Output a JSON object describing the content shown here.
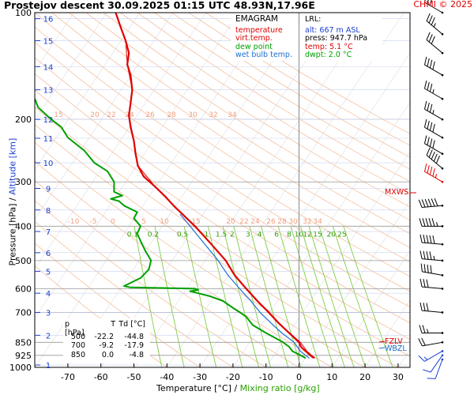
{
  "header": {
    "title": "Prostejov   descent   30.09.2025 01:15 UTC   48.93N,17.96E",
    "credit": "CHMI © 2025"
  },
  "axes": {
    "ylabel_pressure": "Pressure [hPa]",
    "ylabel_sep": " / ",
    "ylabel_altitude": "Altitude [km]",
    "xlabel_temp": "Temperature [°C]",
    "xlabel_sep": " / ",
    "xlabel_mixing": "Mixing ratio [g/kg]"
  },
  "legend": {
    "title": "EMAGRAM",
    "temperature": "temperature",
    "virt_temp": "virt.temp.",
    "dew_point": "dew point",
    "wet_bulb": "wet bulb temp."
  },
  "lrl": {
    "title": "LRL:",
    "alt": "alt: 667 m ASL",
    "press": "press: 947.7 hPa",
    "temp": "temp: 5.1 °C",
    "dwpt": "dwpt: 2.0 °C"
  },
  "table": {
    "header": [
      "p [hPa]",
      "T",
      "Td [°C]"
    ],
    "rows": [
      [
        "500",
        "-22.2",
        "-44.8"
      ],
      [
        "700",
        "-9.2",
        "-17.9"
      ],
      [
        "850",
        "0.0",
        "-4.8"
      ]
    ]
  },
  "levels": {
    "mxws": "MXWS",
    "fzlv": "FZLV",
    "wbzl": "WBZL"
  },
  "colors": {
    "temperature": "#e00000",
    "virt_temp": "#e00000",
    "dew_point": "#00a000",
    "wet_bulb": "#1a6fd0",
    "altitude_axis": "#1a3fd0",
    "dry_adiabat": "#f4c0a0",
    "moist_adiabat": "#cccccc",
    "mixing_ratio": "#80cc40",
    "isotherm_label": "#f0a080"
  },
  "chart_data": {
    "type": "line",
    "y_scale": "log",
    "pressure_ticks": [
      100,
      200,
      300,
      400,
      500,
      600,
      700,
      850,
      925,
      1000
    ],
    "pressure_tick_labels": [
      "100",
      "200",
      "300",
      "400",
      "500",
      "600",
      "700",
      "850",
      "925",
      "1000"
    ],
    "altitude_ticks_km": [
      [
        "1",
        985
      ],
      [
        "2",
        812
      ],
      [
        "3",
        700
      ],
      [
        "4",
        618
      ],
      [
        "5",
        536
      ],
      [
        "6",
        475
      ],
      [
        "7",
        414
      ],
      [
        "8",
        360
      ],
      [
        "9",
        313
      ],
      [
        "10",
        265
      ],
      [
        "11",
        226
      ],
      [
        "12",
        200
      ],
      [
        "13",
        165
      ],
      [
        "14",
        142
      ],
      [
        "15",
        120
      ],
      [
        "16",
        104
      ]
    ],
    "x_ticks": [
      -70,
      -60,
      -50,
      -40,
      -30,
      -20,
      -10,
      0,
      10,
      20,
      30
    ],
    "x_tick_labels": [
      "-70",
      "-60",
      "-50",
      "-40",
      "-30",
      "-20",
      "-10",
      "0",
      "10",
      "20",
      "30"
    ],
    "xlim": [
      -80,
      36
    ],
    "ylim": [
      1000,
      100
    ],
    "mixing_ratio_labels": [
      "0.1",
      "0.2",
      "0.5",
      "1",
      "1.5",
      "2",
      "3",
      "4",
      "6",
      "8",
      "10",
      "12",
      "15",
      "20",
      "25"
    ],
    "dry_adiabat_labels": [
      "-10",
      "-5",
      "0",
      "5",
      "10",
      "15",
      "20",
      "22",
      "24",
      "26",
      "28",
      "30",
      "32",
      "34"
    ],
    "dry_adiabat_labels_top": [
      "15",
      "20",
      "22",
      "24",
      "26",
      "28",
      "30",
      "32",
      "34"
    ],
    "series": [
      {
        "name": "temperature",
        "points": [
          [
            942,
            4.5
          ],
          [
            925,
            3.4
          ],
          [
            900,
            2.0
          ],
          [
            875,
            0.6
          ],
          [
            850,
            0.0
          ],
          [
            800,
            -3.0
          ],
          [
            750,
            -6.2
          ],
          [
            700,
            -9.2
          ],
          [
            650,
            -12.6
          ],
          [
            600,
            -16.0
          ],
          [
            550,
            -19.5
          ],
          [
            500,
            -22.2
          ],
          [
            450,
            -26.5
          ],
          [
            400,
            -31.5
          ],
          [
            350,
            -38.0
          ],
          [
            330,
            -40.5
          ],
          [
            310,
            -43.5
          ],
          [
            290,
            -47.0
          ],
          [
            270,
            -48.8
          ],
          [
            250,
            -49.5
          ],
          [
            230,
            -50.0
          ],
          [
            210,
            -51.0
          ],
          [
            195,
            -51.5
          ],
          [
            180,
            -51.0
          ],
          [
            165,
            -50.5
          ],
          [
            150,
            -51.0
          ],
          [
            140,
            -52.0
          ],
          [
            130,
            -51.5
          ],
          [
            120,
            -52.5
          ],
          [
            110,
            -54.0
          ],
          [
            100,
            -55.5
          ]
        ]
      },
      {
        "name": "virt.temp.",
        "points": [
          [
            942,
            4.9
          ],
          [
            925,
            3.8
          ],
          [
            900,
            2.4
          ],
          [
            850,
            0.4
          ],
          [
            800,
            -2.8
          ],
          [
            750,
            -6.0
          ],
          [
            700,
            -9.0
          ],
          [
            650,
            -12.5
          ],
          [
            600,
            -15.9
          ],
          [
            550,
            -19.4
          ],
          [
            500,
            -22.1
          ],
          [
            450,
            -26.4
          ],
          [
            400,
            -31.5
          ],
          [
            350,
            -38.0
          ],
          [
            310,
            -43.5
          ],
          [
            270,
            -48.8
          ],
          [
            230,
            -50.0
          ],
          [
            195,
            -51.5
          ],
          [
            165,
            -50.5
          ],
          [
            140,
            -52.0
          ],
          [
            120,
            -52.5
          ],
          [
            100,
            -55.5
          ]
        ]
      },
      {
        "name": "dew point",
        "points": [
          [
            942,
            2.0
          ],
          [
            925,
            0.5
          ],
          [
            900,
            -2.0
          ],
          [
            875,
            -3.0
          ],
          [
            850,
            -4.8
          ],
          [
            800,
            -10.0
          ],
          [
            760,
            -14.0
          ],
          [
            720,
            -16.0
          ],
          [
            700,
            -17.9
          ],
          [
            680,
            -20.0
          ],
          [
            650,
            -23.0
          ],
          [
            630,
            -27.0
          ],
          [
            615,
            -31.5
          ],
          [
            610,
            -33.0
          ],
          [
            605,
            -30.5
          ],
          [
            600,
            -31.5
          ],
          [
            595,
            -51.0
          ],
          [
            590,
            -53.0
          ],
          [
            560,
            -48.0
          ],
          [
            530,
            -45.5
          ],
          [
            500,
            -44.8
          ],
          [
            470,
            -46.5
          ],
          [
            440,
            -48.0
          ],
          [
            420,
            -49.0
          ],
          [
            400,
            -48.0
          ],
          [
            380,
            -50.0
          ],
          [
            365,
            -49.0
          ],
          [
            350,
            -53.0
          ],
          [
            340,
            -54.5
          ],
          [
            335,
            -57.0
          ],
          [
            328,
            -53.5
          ],
          [
            320,
            -56.0
          ],
          [
            300,
            -56.0
          ],
          [
            280,
            -58.0
          ],
          [
            265,
            -62.0
          ],
          [
            245,
            -65.0
          ],
          [
            225,
            -70.0
          ],
          [
            210,
            -72.0
          ],
          [
            200,
            -75.0
          ],
          [
            185,
            -79.0
          ],
          [
            175,
            -80.0
          ]
        ]
      },
      {
        "name": "wet bulb temp.",
        "points": [
          [
            942,
            3.1
          ],
          [
            925,
            2.0
          ],
          [
            900,
            0.4
          ],
          [
            850,
            -1.5
          ],
          [
            800,
            -5.2
          ],
          [
            750,
            -8.5
          ],
          [
            700,
            -11.8
          ],
          [
            650,
            -14.6
          ],
          [
            600,
            -18.0
          ],
          [
            550,
            -21.5
          ],
          [
            500,
            -24.5
          ],
          [
            450,
            -28.5
          ],
          [
            400,
            -33.0
          ],
          [
            370,
            -36.0
          ]
        ]
      }
    ],
    "wind_barbs": [
      {
        "p": 950,
        "dir": 200,
        "kt": 10
      },
      {
        "p": 925,
        "dir": 215,
        "kt": 12
      },
      {
        "p": 900,
        "dir": 240,
        "kt": 15
      },
      {
        "p": 850,
        "dir": 260,
        "kt": 20
      },
      {
        "p": 800,
        "dir": 270,
        "kt": 25
      },
      {
        "p": 700,
        "dir": 275,
        "kt": 30
      },
      {
        "p": 600,
        "dir": 275,
        "kt": 30
      },
      {
        "p": 550,
        "dir": 280,
        "kt": 40
      },
      {
        "p": 500,
        "dir": 275,
        "kt": 45
      },
      {
        "p": 450,
        "dir": 275,
        "kt": 50
      },
      {
        "p": 400,
        "dir": 270,
        "kt": 55
      },
      {
        "p": 350,
        "dir": 265,
        "kt": 60
      },
      {
        "p": 300,
        "dir": 300,
        "kt": 45
      },
      {
        "p": 275,
        "dir": 310,
        "kt": 50
      },
      {
        "p": 250,
        "dir": 300,
        "kt": 40
      },
      {
        "p": 225,
        "dir": 300,
        "kt": 40
      },
      {
        "p": 200,
        "dir": 300,
        "kt": 35
      },
      {
        "p": 175,
        "dir": 300,
        "kt": 35
      },
      {
        "p": 150,
        "dir": 300,
        "kt": 40
      },
      {
        "p": 130,
        "dir": 310,
        "kt": 30
      },
      {
        "p": 115,
        "dir": 310,
        "kt": 35
      },
      {
        "p": 100,
        "dir": 300,
        "kt": 30
      }
    ],
    "level_markers": [
      {
        "name": "MXWS",
        "p": 330
      },
      {
        "name": "FZLV",
        "p": 852
      },
      {
        "name": "WBZL",
        "p": 872
      }
    ]
  }
}
